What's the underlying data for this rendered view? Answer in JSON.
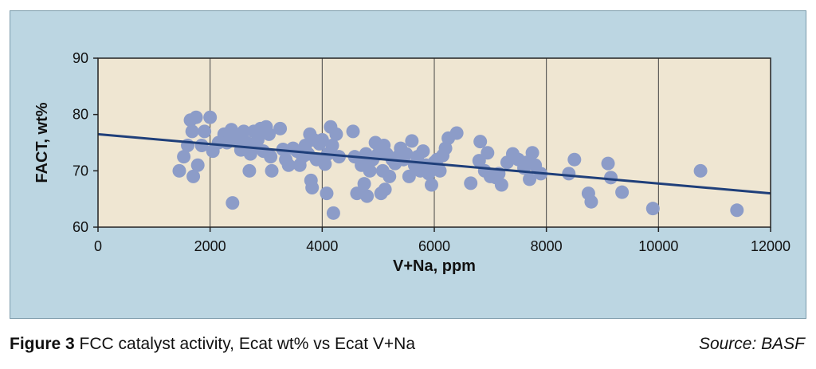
{
  "caption": {
    "figure_label": "Figure 3",
    "text": "FCC catalyst activity, Ecat wt% vs Ecat V+Na",
    "source": "Source: BASF"
  },
  "chart_data": {
    "type": "scatter",
    "title": "",
    "xlabel": "V+Na, ppm",
    "ylabel": "FACT, wt%",
    "xlim": [
      0,
      12000
    ],
    "ylim": [
      60,
      90
    ],
    "x_ticks": [
      0,
      2000,
      4000,
      6000,
      8000,
      10000,
      12000
    ],
    "y_ticks": [
      60,
      70,
      80,
      90
    ],
    "grid": "vertical",
    "colors": {
      "points": "#8c9cc8",
      "trendline": "#1f3f7a",
      "plot_background": "#efe6d2",
      "figure_background": "#bcd6e2"
    },
    "trendline": {
      "x": [
        0,
        12000
      ],
      "y": [
        76.5,
        66.0
      ]
    },
    "points": [
      [
        1450,
        70
      ],
      [
        1530,
        72.5
      ],
      [
        1600,
        74.5
      ],
      [
        1650,
        79
      ],
      [
        1680,
        77
      ],
      [
        1700,
        69
      ],
      [
        1750,
        79.5
      ],
      [
        1780,
        71
      ],
      [
        1850,
        74.5
      ],
      [
        1900,
        77
      ],
      [
        2000,
        79.5
      ],
      [
        2050,
        73.5
      ],
      [
        2150,
        75
      ],
      [
        2250,
        76.5
      ],
      [
        2300,
        75
      ],
      [
        2380,
        77.3
      ],
      [
        2400,
        64.3
      ],
      [
        2450,
        75.5
      ],
      [
        2500,
        76
      ],
      [
        2550,
        73.7
      ],
      [
        2600,
        77
      ],
      [
        2650,
        75
      ],
      [
        2700,
        70
      ],
      [
        2720,
        73
      ],
      [
        2780,
        77
      ],
      [
        2800,
        74.5
      ],
      [
        2850,
        75.5
      ],
      [
        2900,
        77.5
      ],
      [
        2950,
        73.5
      ],
      [
        3000,
        77.8
      ],
      [
        3050,
        76.5
      ],
      [
        3080,
        72.5
      ],
      [
        3100,
        70
      ],
      [
        3250,
        77.5
      ],
      [
        3300,
        73.8
      ],
      [
        3350,
        72
      ],
      [
        3400,
        71
      ],
      [
        3480,
        74
      ],
      [
        3550,
        73.5
      ],
      [
        3600,
        71
      ],
      [
        3650,
        72.5
      ],
      [
        3700,
        74.5
      ],
      [
        3750,
        73
      ],
      [
        3780,
        76.5
      ],
      [
        3800,
        68.3
      ],
      [
        3820,
        67
      ],
      [
        3850,
        75.5
      ],
      [
        3900,
        72
      ],
      [
        3950,
        74.8
      ],
      [
        4000,
        75.5
      ],
      [
        4050,
        71.2
      ],
      [
        4080,
        66
      ],
      [
        4100,
        73
      ],
      [
        4150,
        77.8
      ],
      [
        4180,
        74.5
      ],
      [
        4200,
        62.5
      ],
      [
        4250,
        76.5
      ],
      [
        4300,
        72.5
      ],
      [
        4550,
        77
      ],
      [
        4580,
        72.5
      ],
      [
        4620,
        66
      ],
      [
        4700,
        71
      ],
      [
        4750,
        67.7
      ],
      [
        4780,
        73
      ],
      [
        4800,
        65.5
      ],
      [
        4850,
        70
      ],
      [
        4900,
        72
      ],
      [
        4950,
        75
      ],
      [
        5000,
        73
      ],
      [
        5050,
        66
      ],
      [
        5080,
        70
      ],
      [
        5100,
        74.5
      ],
      [
        5120,
        66.7
      ],
      [
        5150,
        73
      ],
      [
        5200,
        69
      ],
      [
        5250,
        72
      ],
      [
        5300,
        71.3
      ],
      [
        5350,
        72.5
      ],
      [
        5400,
        74
      ],
      [
        5450,
        72
      ],
      [
        5500,
        73
      ],
      [
        5550,
        69
      ],
      [
        5600,
        75.3
      ],
      [
        5650,
        71
      ],
      [
        5700,
        72.5
      ],
      [
        5750,
        70
      ],
      [
        5800,
        73.5
      ],
      [
        5850,
        71
      ],
      [
        5900,
        69.5
      ],
      [
        5950,
        67.5
      ],
      [
        6000,
        71.5
      ],
      [
        6050,
        72
      ],
      [
        6100,
        70
      ],
      [
        6150,
        72.7
      ],
      [
        6200,
        74
      ],
      [
        6250,
        75.8
      ],
      [
        6400,
        76.7
      ],
      [
        6650,
        67.8
      ],
      [
        6800,
        71.8
      ],
      [
        6820,
        75.2
      ],
      [
        6900,
        70
      ],
      [
        6950,
        73.2
      ],
      [
        7000,
        69
      ],
      [
        7100,
        68.8
      ],
      [
        7150,
        69.5
      ],
      [
        7200,
        67.5
      ],
      [
        7300,
        71.5
      ],
      [
        7400,
        73
      ],
      [
        7500,
        72
      ],
      [
        7600,
        70.5
      ],
      [
        7650,
        71.5
      ],
      [
        7700,
        68.5
      ],
      [
        7750,
        73.2
      ],
      [
        7800,
        71
      ],
      [
        7900,
        69.5
      ],
      [
        8400,
        69.5
      ],
      [
        8500,
        72
      ],
      [
        8750,
        66
      ],
      [
        8800,
        64.5
      ],
      [
        9100,
        71.3
      ],
      [
        9150,
        68.8
      ],
      [
        9350,
        66.2
      ],
      [
        9900,
        63.3
      ],
      [
        10750,
        70
      ],
      [
        11400,
        63
      ]
    ]
  }
}
